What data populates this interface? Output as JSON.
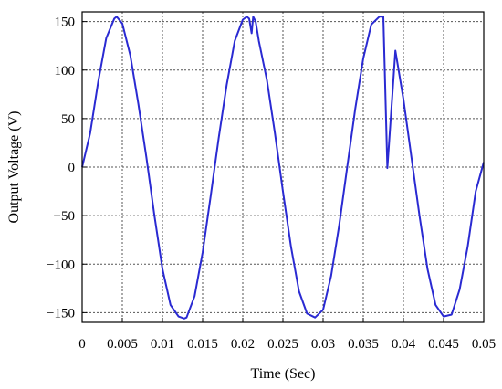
{
  "chart_data": {
    "type": "line",
    "title": "",
    "xlabel": "Time (Sec)",
    "ylabel": "Output Voltage (V)",
    "xlim": [
      0,
      0.05
    ],
    "ylim": [
      -160,
      160
    ],
    "x_ticks": [
      0,
      0.005,
      0.01,
      0.015,
      0.02,
      0.025,
      0.03,
      0.035,
      0.04,
      0.045,
      0.05
    ],
    "x_tick_labels": [
      "0",
      "0.005",
      "0.01",
      "0.015",
      "0.02",
      "0.025",
      "0.03",
      "0.035",
      "0.04",
      "0.045",
      "0.05"
    ],
    "y_ticks": [
      -150,
      -100,
      -50,
      0,
      50,
      100,
      150
    ],
    "y_tick_labels": [
      "−150",
      "−100",
      "−50",
      "0",
      "50",
      "100",
      "150"
    ],
    "grid": true,
    "legend": "none",
    "series": [
      {
        "color": "#2a2ad2",
        "x": [
          0,
          0.001,
          0.002,
          0.003,
          0.004,
          0.0043,
          0.005,
          0.006,
          0.007,
          0.008,
          0.009,
          0.01,
          0.011,
          0.012,
          0.0127,
          0.013,
          0.014,
          0.015,
          0.016,
          0.017,
          0.018,
          0.019,
          0.02,
          0.0205,
          0.0208,
          0.0211,
          0.0213,
          0.0216,
          0.022,
          0.023,
          0.024,
          0.025,
          0.026,
          0.027,
          0.028,
          0.029,
          0.03,
          0.031,
          0.032,
          0.033,
          0.034,
          0.035,
          0.036,
          0.037,
          0.0375,
          0.038,
          0.039,
          0.04,
          0.041,
          0.042,
          0.043,
          0.044,
          0.045,
          0.046,
          0.047,
          0.048,
          0.049,
          0.05
        ],
        "y": [
          0,
          35,
          88,
          133,
          153,
          155,
          148,
          115,
          65,
          10,
          -50,
          -105,
          -142,
          -154,
          -156,
          -155,
          -133,
          -88,
          -30,
          30,
          85,
          130,
          152,
          155,
          153,
          138,
          155,
          150,
          130,
          90,
          35,
          -25,
          -82,
          -128,
          -151,
          -155,
          -147,
          -112,
          -60,
          0,
          60,
          112,
          147,
          155,
          155,
          -1,
          120,
          70,
          10,
          -50,
          -105,
          -142,
          -154,
          -152,
          -126,
          -82,
          -25,
          5
        ]
      }
    ]
  }
}
